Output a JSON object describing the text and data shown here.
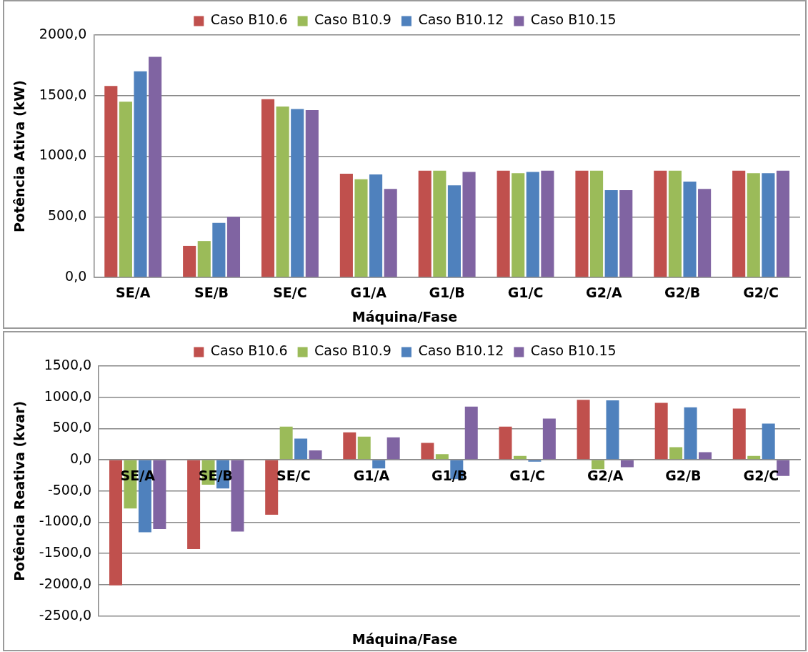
{
  "chart_data": [
    {
      "type": "bar",
      "xlabel": "Máquina/Fase",
      "ylabel": "Potência Ativa (kW)",
      "categories": [
        "SE/A",
        "SE/B",
        "SE/C",
        "G1/A",
        "G1/B",
        "G1/C",
        "G2/A",
        "G2/B",
        "G2/C"
      ],
      "series": [
        {
          "name": "Caso B10.6",
          "color": "#c0504d",
          "values": [
            1580,
            260,
            1470,
            855,
            880,
            880,
            880,
            880,
            880
          ]
        },
        {
          "name": "Caso B10.9",
          "color": "#9bbb59",
          "values": [
            1450,
            300,
            1410,
            810,
            880,
            860,
            880,
            880,
            860
          ]
        },
        {
          "name": "Caso B10.12",
          "color": "#4f81bd",
          "values": [
            1700,
            450,
            1390,
            850,
            760,
            870,
            720,
            790,
            860
          ]
        },
        {
          "name": "Caso B10.15",
          "color": "#8064a2",
          "values": [
            1820,
            500,
            1380,
            730,
            870,
            880,
            720,
            730,
            880
          ]
        }
      ],
      "ylim": [
        0,
        2000
      ],
      "yticks": [
        {
          "value": 0,
          "label": "0,0"
        },
        {
          "value": 500,
          "label": "500,0"
        },
        {
          "value": 1000,
          "label": "1000,0"
        },
        {
          "value": 1500,
          "label": "1500,0"
        },
        {
          "value": 2000,
          "label": "2000,0"
        }
      ],
      "grid": "y",
      "legend": "top"
    },
    {
      "type": "bar",
      "xlabel": "Máquina/Fase",
      "ylabel": "Potência Reativa (kvar)",
      "categories": [
        "SE/A",
        "SE/B",
        "SE/C",
        "G1/A",
        "G1/B",
        "G1/C",
        "G2/A",
        "G2/B",
        "G2/C"
      ],
      "series": [
        {
          "name": "Caso B10.6",
          "color": "#c0504d",
          "values": [
            -2010,
            -1430,
            -880,
            440,
            270,
            530,
            960,
            910,
            820
          ]
        },
        {
          "name": "Caso B10.9",
          "color": "#9bbb59",
          "values": [
            -780,
            -400,
            530,
            370,
            90,
            60,
            -150,
            200,
            60
          ]
        },
        {
          "name": "Caso B10.12",
          "color": "#4f81bd",
          "values": [
            -1160,
            -460,
            340,
            -140,
            -310,
            -30,
            950,
            840,
            580
          ]
        },
        {
          "name": "Caso B10.15",
          "color": "#8064a2",
          "values": [
            -1110,
            -1150,
            150,
            360,
            850,
            660,
            -120,
            120,
            -260
          ]
        }
      ],
      "ylim": [
        -2500,
        1500
      ],
      "yticks": [
        {
          "value": -2500,
          "label": "-2500,0"
        },
        {
          "value": -2000,
          "label": "-2000,0"
        },
        {
          "value": -1500,
          "label": "-1500,0"
        },
        {
          "value": -1000,
          "label": "-1000,0"
        },
        {
          "value": -500,
          "label": "-500,0"
        },
        {
          "value": 0,
          "label": "0,0"
        },
        {
          "value": 500,
          "label": "500,0"
        },
        {
          "value": 1000,
          "label": "1000,0"
        },
        {
          "value": 1500,
          "label": "1500,0"
        }
      ],
      "grid": "y",
      "legend": "top"
    }
  ]
}
